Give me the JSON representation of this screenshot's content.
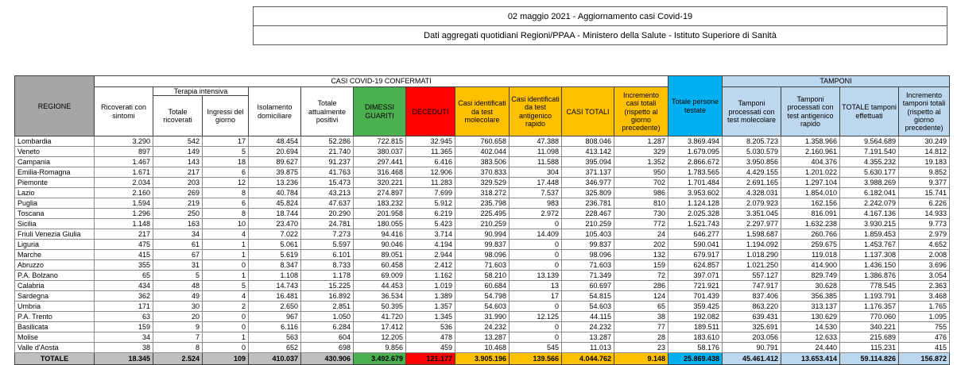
{
  "header": {
    "title_line1": "02 maggio 2021 - Aggiornamento casi Covid-19",
    "title_line2": "Dati aggregati quotidiani Regioni/PPAA - Ministero della Salute - Istituto Superiore di Sanità"
  },
  "colors": {
    "green": "#4caf50",
    "red": "#ff0000",
    "yellow": "#ffc000",
    "cyan": "#00b0f0",
    "light_blue": "#bdd7ee",
    "header_gray": "#a6a6a6",
    "totals_gray": "#bfbfbf"
  },
  "table": {
    "group_headers": {
      "confirmed": "CASI COVID-19 CONFERMATI",
      "tamponi": "TAMPONI",
      "terapia_intensiva": "Terapia intensiva"
    },
    "columns": {
      "regione": "REGIONE",
      "ricoverati_sintomi": "Ricoverati con sintomi",
      "totale_ricoverati": "Totale ricoverati",
      "ingressi_giorno": "Ingressi del giorno",
      "isolamento": "Isolamento domiciliare",
      "attualmente_positivi": "Totale attualmente positivi",
      "dimessi": "DIMESSI GUARITI",
      "deceduti": "DECEDUTI",
      "casi_molecolare": "Casi identificati da test molecolare",
      "casi_antigenico": "Casi identificati da test antigenico rapido",
      "casi_totali": "CASI TOTALI",
      "incremento_casi": "Incremento casi totali (rispetto al giorno precedente)",
      "persone_testate": "Totale persone testate",
      "tamponi_molecolare": "Tamponi processati con test molecolare",
      "tamponi_antigenico": "Tamponi processati con test antigenico rapido",
      "tamponi_totale": "TOTALE tamponi effettuati",
      "incremento_tamponi": "Incremento tamponi totali (rispetto al giorno precedente)"
    },
    "rows": [
      {
        "region": "Lombardia",
        "values": [
          "3.290",
          "542",
          "17",
          "48.454",
          "52.286",
          "722.815",
          "32.945",
          "760.658",
          "47.388",
          "808.046",
          "1.287",
          "3.869.494",
          "8.205.723",
          "1.358.966",
          "9.564.689",
          "30.249"
        ]
      },
      {
        "region": "Veneto",
        "values": [
          "897",
          "149",
          "5",
          "20.694",
          "21.740",
          "380.037",
          "11.365",
          "402.044",
          "11.098",
          "413.142",
          "329",
          "1.679.095",
          "5.030.579",
          "2.160.961",
          "7.191.540",
          "14.812"
        ]
      },
      {
        "region": "Campania",
        "values": [
          "1.467",
          "143",
          "18",
          "89.627",
          "91.237",
          "297.441",
          "6.416",
          "383.506",
          "11.588",
          "395.094",
          "1.352",
          "2.866.672",
          "3.950.856",
          "404.376",
          "4.355.232",
          "19.183"
        ]
      },
      {
        "region": "Emilia-Romagna",
        "values": [
          "1.671",
          "217",
          "6",
          "39.875",
          "41.763",
          "316.468",
          "12.906",
          "370.833",
          "304",
          "371.137",
          "950",
          "1.783.565",
          "4.429.155",
          "1.201.022",
          "5.630.177",
          "9.852"
        ]
      },
      {
        "region": "Piemonte",
        "values": [
          "2.034",
          "203",
          "12",
          "13.236",
          "15.473",
          "320.221",
          "11.283",
          "329.529",
          "17.448",
          "346.977",
          "702",
          "1.701.484",
          "2.691.165",
          "1.297.104",
          "3.988.269",
          "9.377"
        ]
      },
      {
        "region": "Lazio",
        "values": [
          "2.160",
          "269",
          "8",
          "40.784",
          "43.213",
          "274.897",
          "7.699",
          "318.272",
          "7.537",
          "325.809",
          "986",
          "3.953.602",
          "4.328.031",
          "1.854.010",
          "6.182.041",
          "15.741"
        ]
      },
      {
        "region": "Puglia",
        "values": [
          "1.594",
          "219",
          "6",
          "45.824",
          "47.637",
          "183.232",
          "5.912",
          "235.798",
          "983",
          "236.781",
          "810",
          "1.124.128",
          "2.079.923",
          "162.156",
          "2.242.079",
          "6.226"
        ]
      },
      {
        "region": "Toscana",
        "values": [
          "1.296",
          "250",
          "8",
          "18.744",
          "20.290",
          "201.958",
          "6.219",
          "225.495",
          "2.972",
          "228.467",
          "730",
          "2.025.328",
          "3.351.045",
          "816.091",
          "4.167.136",
          "14.933"
        ]
      },
      {
        "region": "Sicilia",
        "values": [
          "1.148",
          "163",
          "10",
          "23.470",
          "24.781",
          "180.055",
          "5.423",
          "210.259",
          "0",
          "210.259",
          "772",
          "1.521.743",
          "2.297.977",
          "1.632.238",
          "3.930.215",
          "9.773"
        ]
      },
      {
        "region": "Friuli Venezia Giulia",
        "values": [
          "217",
          "34",
          "4",
          "7.022",
          "7.273",
          "94.416",
          "3.714",
          "90.994",
          "14.409",
          "105.403",
          "24",
          "646.277",
          "1.598.687",
          "260.766",
          "1.859.453",
          "2.979"
        ]
      },
      {
        "region": "Liguria",
        "values": [
          "475",
          "61",
          "1",
          "5.061",
          "5.597",
          "90.046",
          "4.194",
          "99.837",
          "0",
          "99.837",
          "202",
          "590.041",
          "1.194.092",
          "259.675",
          "1.453.767",
          "4.652"
        ]
      },
      {
        "region": "Marche",
        "values": [
          "415",
          "67",
          "1",
          "5.619",
          "6.101",
          "89.051",
          "2.944",
          "98.096",
          "0",
          "98.096",
          "132",
          "679.917",
          "1.018.290",
          "119.018",
          "1.137.308",
          "2.008"
        ]
      },
      {
        "region": "Abruzzo",
        "values": [
          "355",
          "31",
          "0",
          "8.347",
          "8.733",
          "60.458",
          "2.412",
          "71.603",
          "0",
          "71.603",
          "159",
          "624.857",
          "1.021.250",
          "414.900",
          "1.436.150",
          "3.696"
        ]
      },
      {
        "region": "P.A. Bolzano",
        "values": [
          "65",
          "5",
          "1",
          "1.108",
          "1.178",
          "69.009",
          "1.162",
          "58.210",
          "13.139",
          "71.349",
          "72",
          "397.071",
          "557.127",
          "829.749",
          "1.386.876",
          "3.054"
        ]
      },
      {
        "region": "Calabria",
        "values": [
          "434",
          "48",
          "5",
          "14.743",
          "15.225",
          "44.453",
          "1.019",
          "60.684",
          "13",
          "60.697",
          "286",
          "721.921",
          "747.917",
          "30.628",
          "778.545",
          "2.363"
        ]
      },
      {
        "region": "Sardegna",
        "values": [
          "362",
          "49",
          "4",
          "16.481",
          "16.892",
          "36.534",
          "1.389",
          "54.798",
          "17",
          "54.815",
          "124",
          "701.439",
          "837.406",
          "356.385",
          "1.193.791",
          "3.468"
        ]
      },
      {
        "region": "Umbria",
        "values": [
          "171",
          "30",
          "2",
          "2.650",
          "2.851",
          "50.395",
          "1.357",
          "54.603",
          "0",
          "54.603",
          "65",
          "359.425",
          "863.220",
          "313.137",
          "1.176.357",
          "1.765"
        ]
      },
      {
        "region": "P.A. Trento",
        "values": [
          "63",
          "20",
          "0",
          "967",
          "1.050",
          "41.720",
          "1.345",
          "31.990",
          "12.125",
          "44.115",
          "38",
          "192.082",
          "639.431",
          "130.629",
          "770.060",
          "1.095"
        ]
      },
      {
        "region": "Basilicata",
        "values": [
          "159",
          "9",
          "0",
          "6.116",
          "6.284",
          "17.412",
          "536",
          "24.232",
          "0",
          "24.232",
          "77",
          "189.511",
          "325.691",
          "14.530",
          "340.221",
          "755"
        ]
      },
      {
        "region": "Molise",
        "values": [
          "34",
          "7",
          "1",
          "563",
          "604",
          "12.205",
          "478",
          "13.287",
          "0",
          "13.287",
          "28",
          "183.610",
          "203.056",
          "12.633",
          "215.689",
          "476"
        ]
      },
      {
        "region": "Valle d'Aosta",
        "values": [
          "38",
          "8",
          "0",
          "652",
          "698",
          "9.856",
          "459",
          "10.468",
          "545",
          "11.013",
          "23",
          "58.176",
          "90.791",
          "24.440",
          "115.231",
          "415"
        ]
      }
    ],
    "totals": {
      "region": "TOTALE",
      "values": [
        "18.345",
        "2.524",
        "109",
        "410.037",
        "430.906",
        "3.492.679",
        "121.177",
        "3.905.196",
        "139.566",
        "4.044.762",
        "9.148",
        "25.869.438",
        "45.461.412",
        "13.653.414",
        "59.114.826",
        "156.872"
      ]
    }
  }
}
